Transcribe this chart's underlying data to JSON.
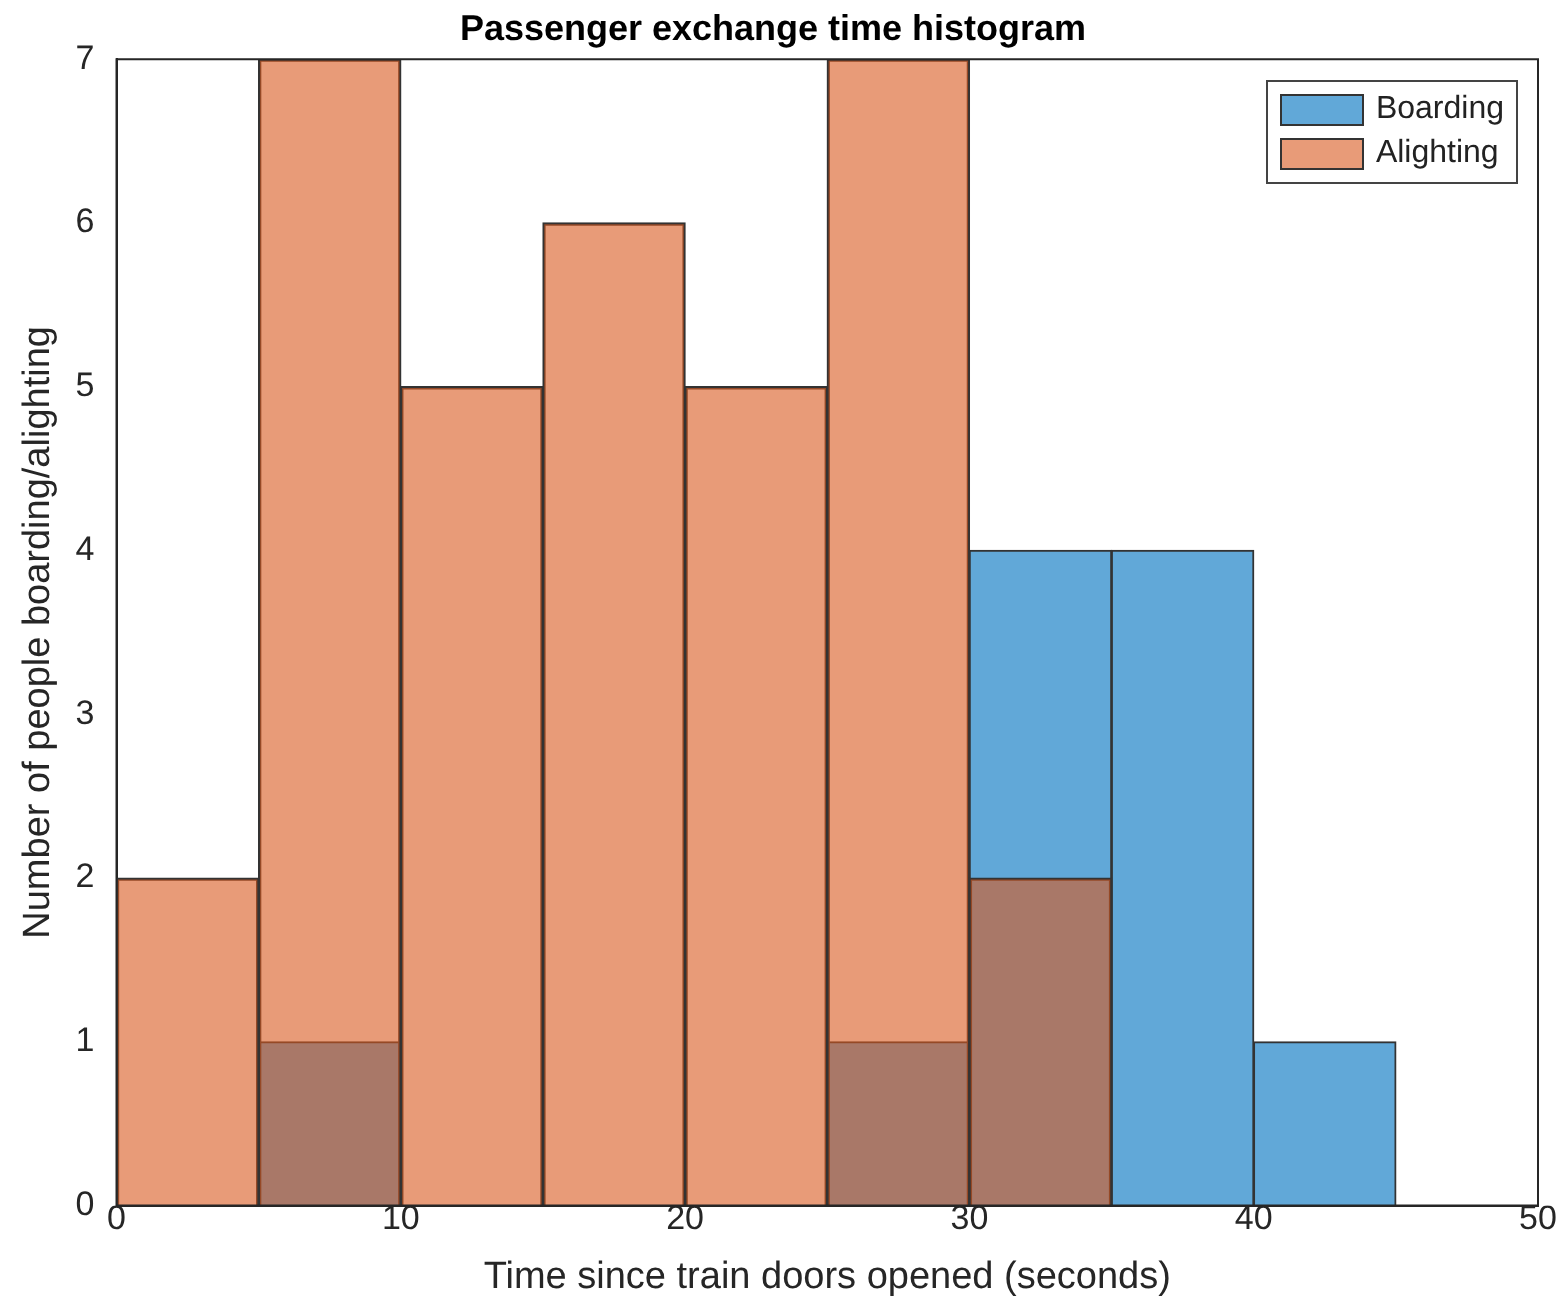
{
  "chart_data": {
    "type": "histogram",
    "title": "Passenger exchange time histogram",
    "xlabel": "Time since train doors opened (seconds)",
    "ylabel": "Number of people boarding/alighting",
    "bins": [
      0,
      5,
      10,
      15,
      20,
      25,
      30,
      35,
      40,
      45
    ],
    "series": [
      {
        "name": "Boarding",
        "color": "#61a8d8",
        "values": [
          0,
          1,
          0,
          0,
          0,
          1,
          4,
          4,
          1
        ]
      },
      {
        "name": "Alighting",
        "color": "#d9581e",
        "values": [
          2,
          7,
          5,
          6,
          5,
          7,
          2,
          0,
          0
        ]
      }
    ],
    "xlim": [
      0,
      50
    ],
    "xticks": [
      0,
      10,
      20,
      30,
      40,
      50
    ],
    "ylim": [
      0,
      7
    ],
    "yticks": [
      0,
      1,
      2,
      3,
      4,
      5,
      6,
      7
    ],
    "legend": "top right"
  }
}
